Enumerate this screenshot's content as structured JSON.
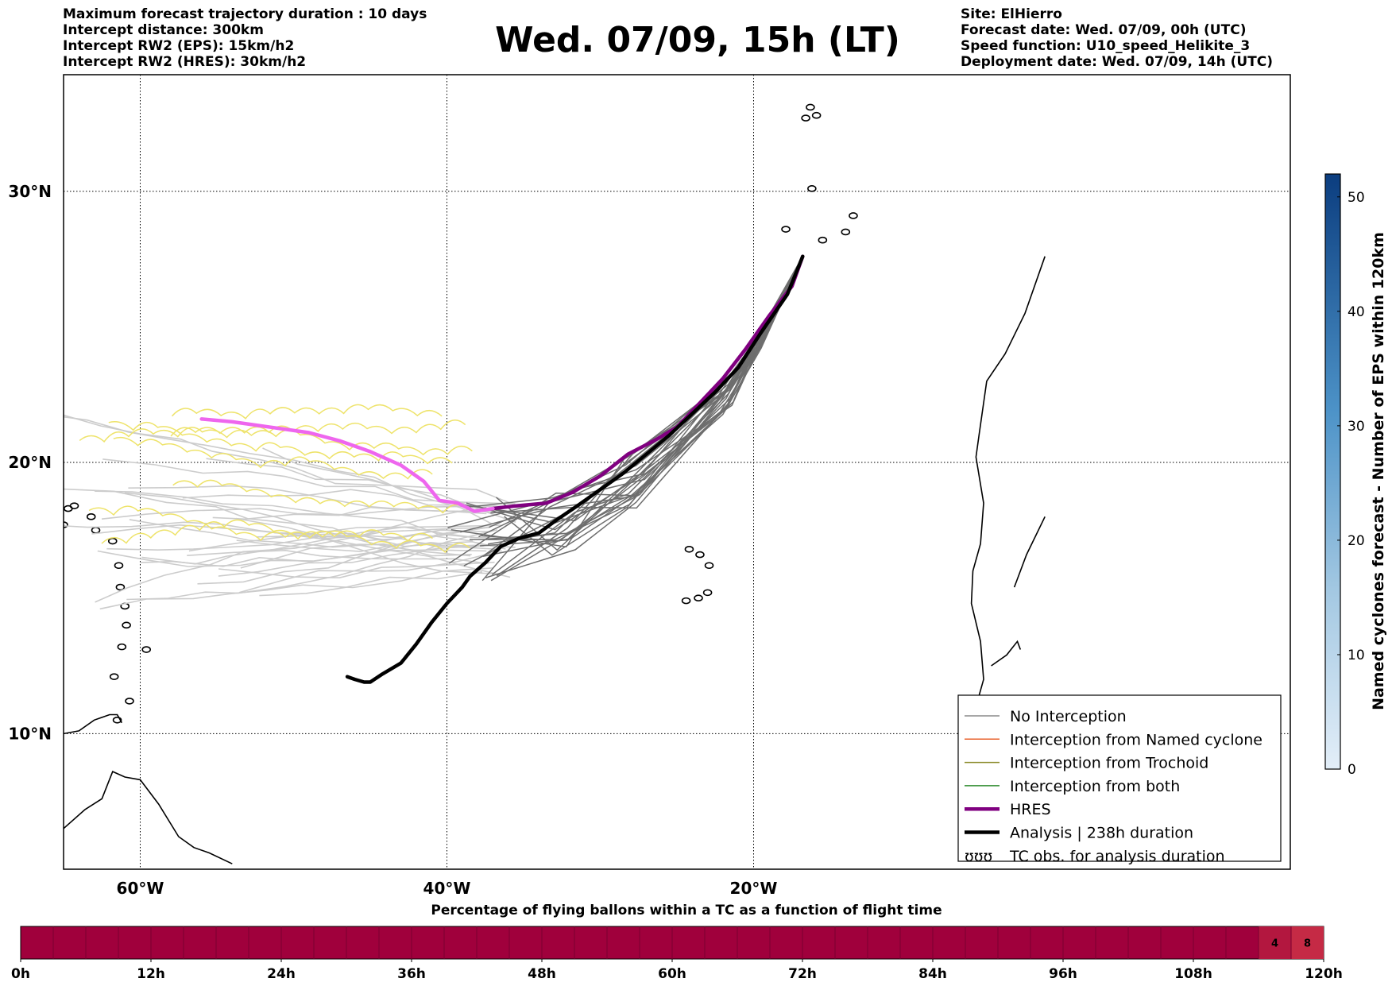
{
  "info_left": [
    "Maximum forecast trajectory duration : 10 days",
    "Intercept distance: 300km",
    "Intercept RW2 (EPS):  15km/h2",
    "Intercept RW2 (HRES): 30km/h2"
  ],
  "info_right": [
    "Site: ElHierro",
    "Forecast date: Wed. 07/09, 00h (UTC)",
    "Speed function: U10_speed_Helikite_3",
    "Deployment date: Wed. 07/09, 14h (UTC)"
  ],
  "title": "Wed. 07/09, 15h (LT)",
  "map": {
    "lon_range": [
      -65,
      15
    ],
    "lat_range": [
      5,
      34.3
    ],
    "lon_ticks": [
      {
        "lon": -60,
        "label": "60°W"
      },
      {
        "lon": -40,
        "label": "40°W"
      },
      {
        "lon": -20,
        "label": "20°W"
      }
    ],
    "lat_ticks": [
      {
        "lat": 30,
        "label": "30°N"
      },
      {
        "lat": 20,
        "label": "20°N"
      },
      {
        "lat": 10,
        "label": "10°N"
      }
    ],
    "grid": "dotted",
    "hres_track": [
      [
        -16.8,
        27.6
      ],
      [
        -17.5,
        26.5
      ],
      [
        -19,
        25.4
      ],
      [
        -20.5,
        24.2
      ],
      [
        -22,
        23.1
      ],
      [
        -23.5,
        22.2
      ],
      [
        -25,
        21.3
      ],
      [
        -26.5,
        20.8
      ],
      [
        -28.2,
        20.3
      ],
      [
        -30,
        19.5
      ],
      [
        -31.8,
        18.9
      ],
      [
        -33.5,
        18.5
      ],
      [
        -35.5,
        18.4
      ],
      [
        -37,
        18.3
      ],
      [
        -38.2,
        18.2
      ],
      [
        -39.3,
        18.5
      ],
      [
        -40.5,
        18.6
      ],
      [
        -41.5,
        19.3
      ],
      [
        -43,
        19.9
      ],
      [
        -45,
        20.4
      ],
      [
        -47,
        20.8
      ],
      [
        -49,
        21.1
      ],
      [
        -51.5,
        21.3
      ],
      [
        -54,
        21.5
      ],
      [
        -56,
        21.6
      ]
    ],
    "analysis_track": [
      [
        -16.8,
        27.6
      ],
      [
        -17.8,
        26.2
      ],
      [
        -19.5,
        24.8
      ],
      [
        -21,
        23.5
      ],
      [
        -22.5,
        22.6
      ],
      [
        -24,
        21.8
      ],
      [
        -25.5,
        21
      ],
      [
        -27,
        20.3
      ],
      [
        -28.5,
        19.6
      ],
      [
        -30,
        19
      ],
      [
        -31.5,
        18.4
      ],
      [
        -32.8,
        17.9
      ],
      [
        -34,
        17.4
      ],
      [
        -35.3,
        17.2
      ],
      [
        -36.5,
        16.9
      ],
      [
        -37.5,
        16.3
      ],
      [
        -38.5,
        15.8
      ],
      [
        -39,
        15.4
      ],
      [
        -40,
        14.8
      ],
      [
        -41,
        14.1
      ],
      [
        -42,
        13.3
      ],
      [
        -43,
        12.6
      ],
      [
        -44.2,
        12.2
      ],
      [
        -45,
        11.9
      ],
      [
        -45.4,
        11.9
      ],
      [
        -46,
        12
      ],
      [
        -46.5,
        12.1
      ]
    ],
    "legend": [
      {
        "label": "No Interception",
        "color": "#8a8a8a",
        "style": "thin"
      },
      {
        "label": "Interception from Named cyclone",
        "color": "#e8612c",
        "style": "thin"
      },
      {
        "label": "Interception from Trochoid",
        "color": "#8b8b2a",
        "style": "thin"
      },
      {
        "label": "Interception from both",
        "color": "#2e8b2e",
        "style": "thin"
      },
      {
        "label": "HRES",
        "color": "#800080",
        "style": "thick"
      },
      {
        "label": "Analysis | 238h duration",
        "color": "#000000",
        "style": "thick"
      },
      {
        "label": "TC obs. for analysis duration",
        "color": "#000000",
        "style": "loops"
      }
    ]
  },
  "colorbar": {
    "title": "Named cyclones forecast - Number of EPS within 120km",
    "min": 0,
    "max": 52,
    "ticks": [
      0,
      10,
      20,
      30,
      40,
      50
    ],
    "color_low": "#e3eef8",
    "color_high": "#0b3d7f"
  },
  "bottom_bar": {
    "title": "Percentage of flying ballons within a TC as a function of flight time",
    "tick_labels": [
      "0h",
      "12h",
      "24h",
      "36h",
      "48h",
      "60h",
      "72h",
      "84h",
      "96h",
      "108h",
      "120h"
    ],
    "hours_max": 120,
    "cell_hours": 3,
    "base_color": "#a0003c",
    "cells": [
      {
        "start_h": 114,
        "label": "4",
        "color": "#b3173f"
      },
      {
        "start_h": 117,
        "label": "8",
        "color": "#c52a45"
      }
    ]
  }
}
